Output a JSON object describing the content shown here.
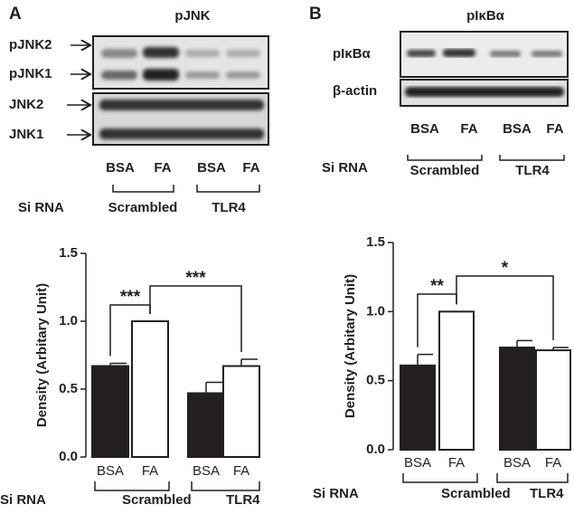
{
  "panel_labels": [
    "A",
    "B"
  ],
  "blots": [
    {
      "title": "pJNK",
      "band_labels": [
        "pJNK2",
        "pJNK1",
        "JNK2",
        "JNK1"
      ],
      "lanes": [
        "BSA",
        "FA",
        "BSA",
        "FA"
      ],
      "row_label": "Si RNA",
      "groups": [
        "Scrambled",
        "TLR4"
      ]
    },
    {
      "title": "pIκBα",
      "band_labels": [
        "pIκBα",
        "β-actin"
      ],
      "lanes": [
        "BSA",
        "FA",
        "BSA",
        "FA"
      ],
      "row_label": "Si RNA",
      "groups": [
        "Scrambled",
        "TLR4"
      ]
    }
  ],
  "chart_data": [
    {
      "type": "bar",
      "y_label": "Density (Arbitary Unit)",
      "categories": [
        "BSA",
        "FA",
        "BSA",
        "FA"
      ],
      "values": [
        0.67,
        1.0,
        0.47,
        0.67
      ],
      "errors": [
        0.02,
        0.0,
        0.08,
        0.05
      ],
      "colors": [
        "#231f20",
        "#ffffff",
        "#231f20",
        "#ffffff"
      ],
      "ylim": [
        0,
        1.5
      ],
      "yticks": [
        {
          "value": 0,
          "label": "0.0"
        },
        0.5,
        {
          "value": 1,
          "label": "1.0"
        },
        1.5
      ],
      "row_label": "Si RNA",
      "groups": [
        "Scrambled",
        "TLR4"
      ],
      "annotations": [
        "***",
        "***"
      ]
    },
    {
      "type": "bar",
      "y_label": "Density (Arbitary Unit)",
      "categories": [
        "BSA",
        "FA",
        "BSA",
        "FA"
      ],
      "values": [
        0.61,
        1.0,
        0.74,
        0.72
      ],
      "errors": [
        0.08,
        0.0,
        0.05,
        0.02
      ],
      "colors": [
        "#231f20",
        "#ffffff",
        "#231f20",
        "#ffffff"
      ],
      "ylim": [
        0,
        1.5
      ],
      "yticks": [
        {
          "value": 0,
          "label": "0.0"
        },
        0.5,
        {
          "value": 1,
          "label": "1.0"
        },
        1.5
      ],
      "row_label": "Si RNA",
      "groups": [
        "Scrambled",
        "TLR4"
      ],
      "annotations": [
        "**",
        "*"
      ]
    }
  ]
}
